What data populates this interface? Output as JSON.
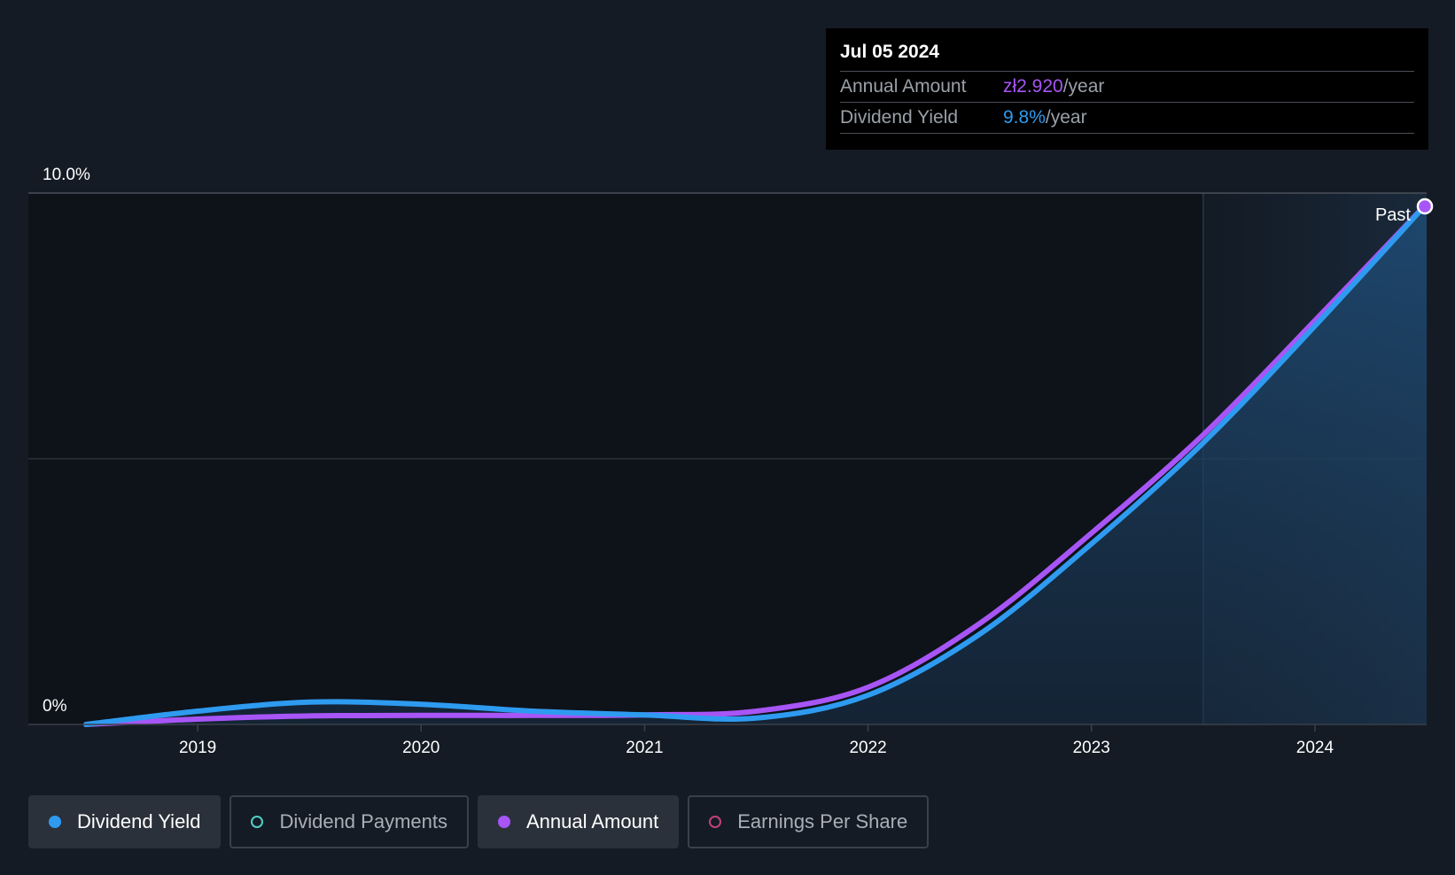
{
  "tooltip": {
    "date": "Jul 05 2024",
    "rows": [
      {
        "label": "Annual Amount",
        "value": "zł2.920",
        "unit": "/year"
      },
      {
        "label": "Dividend Yield",
        "value": "9.8%",
        "unit": "/year"
      }
    ]
  },
  "past_label": "Past",
  "legend": [
    {
      "label": "Dividend Yield",
      "active": true,
      "color": "#2e9bf0"
    },
    {
      "label": "Dividend Payments",
      "active": false,
      "color": "#4fd1c5"
    },
    {
      "label": "Annual Amount",
      "active": true,
      "color": "#a855f7"
    },
    {
      "label": "Earnings Per Share",
      "active": false,
      "color": "#c2417a"
    }
  ],
  "colors": {
    "background": "#151b24",
    "dividend_yield": "#2e9bf0",
    "annual_amount": "#a855f7",
    "past_region": "#1c3550"
  },
  "chart_data": {
    "type": "line",
    "x_ticks": [
      "2019",
      "2020",
      "2021",
      "2022",
      "2023",
      "2024"
    ],
    "y_ticks": [
      "0%",
      "10.0%"
    ],
    "ylim": [
      0,
      10
    ],
    "xlim": [
      "2018-07",
      "2024-07"
    ],
    "past_region_start": "2023-07",
    "series": [
      {
        "name": "Dividend Yield",
        "color": "#2e9bf0",
        "points": [
          [
            "2018-07",
            0.0
          ],
          [
            "2019-01",
            0.25
          ],
          [
            "2019-07",
            0.42
          ],
          [
            "2020-01",
            0.38
          ],
          [
            "2020-07",
            0.25
          ],
          [
            "2021-01",
            0.18
          ],
          [
            "2021-07",
            0.12
          ],
          [
            "2022-01",
            0.55
          ],
          [
            "2022-07",
            1.7
          ],
          [
            "2023-01",
            3.4
          ],
          [
            "2023-07",
            5.3
          ],
          [
            "2024-01",
            7.5
          ],
          [
            "2024-07",
            9.8
          ]
        ]
      },
      {
        "name": "Annual Amount",
        "color": "#a855f7",
        "points": [
          [
            "2018-07",
            0.0
          ],
          [
            "2019-01",
            0.1
          ],
          [
            "2019-07",
            0.16
          ],
          [
            "2020-01",
            0.17
          ],
          [
            "2020-07",
            0.17
          ],
          [
            "2021-01",
            0.18
          ],
          [
            "2021-07",
            0.25
          ],
          [
            "2022-01",
            0.7
          ],
          [
            "2022-07",
            1.9
          ],
          [
            "2023-01",
            3.6
          ],
          [
            "2023-07",
            5.45
          ],
          [
            "2024-01",
            7.6
          ],
          [
            "2024-07",
            9.8
          ]
        ]
      }
    ]
  }
}
